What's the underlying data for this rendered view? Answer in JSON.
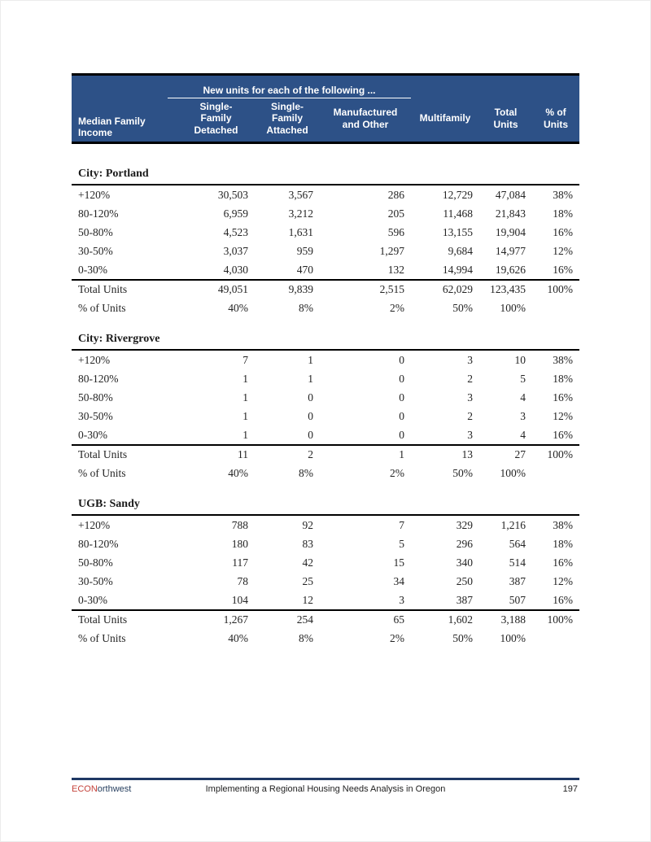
{
  "colors": {
    "header_bg": "#2d5187",
    "header_text": "#ffffff",
    "rule_black": "#000000",
    "footer_rule_navy": "#1f3864",
    "brand_red": "#c4423a",
    "brand_navy": "#263f5f"
  },
  "header": {
    "group_label": "New units for each of the following ...",
    "columns": [
      "Median Family\nIncome",
      "Single-\nFamily\nDetached",
      "Single-\nFamily\nAttached",
      "Manufactured\nand Other",
      "Multifamily",
      "Total\nUnits",
      "% of\nUnits"
    ]
  },
  "sections": [
    {
      "title": "City: Portland",
      "rows": [
        {
          "label": "+120%",
          "values": [
            "30,503",
            "3,567",
            "286",
            "12,729",
            "47,084",
            "38%"
          ]
        },
        {
          "label": "80-120%",
          "values": [
            "6,959",
            "3,212",
            "205",
            "11,468",
            "21,843",
            "18%"
          ]
        },
        {
          "label": "50-80%",
          "values": [
            "4,523",
            "1,631",
            "596",
            "13,155",
            "19,904",
            "16%"
          ]
        },
        {
          "label": "30-50%",
          "values": [
            "3,037",
            "959",
            "1,297",
            "9,684",
            "14,977",
            "12%"
          ]
        },
        {
          "label": "0-30%",
          "values": [
            "4,030",
            "470",
            "132",
            "14,994",
            "19,626",
            "16%"
          ]
        }
      ],
      "total": {
        "label": "Total Units",
        "values": [
          "49,051",
          "9,839",
          "2,515",
          "62,029",
          "123,435",
          "100%"
        ]
      },
      "pct": {
        "label": "% of Units",
        "values": [
          "40%",
          "8%",
          "2%",
          "50%",
          "100%",
          ""
        ]
      }
    },
    {
      "title": "City: Rivergrove",
      "rows": [
        {
          "label": "+120%",
          "values": [
            "7",
            "1",
            "0",
            "3",
            "10",
            "38%"
          ]
        },
        {
          "label": "80-120%",
          "values": [
            "1",
            "1",
            "0",
            "2",
            "5",
            "18%"
          ]
        },
        {
          "label": "50-80%",
          "values": [
            "1",
            "0",
            "0",
            "3",
            "4",
            "16%"
          ]
        },
        {
          "label": "30-50%",
          "values": [
            "1",
            "0",
            "0",
            "2",
            "3",
            "12%"
          ]
        },
        {
          "label": "0-30%",
          "values": [
            "1",
            "0",
            "0",
            "3",
            "4",
            "16%"
          ]
        }
      ],
      "total": {
        "label": "Total Units",
        "values": [
          "11",
          "2",
          "1",
          "13",
          "27",
          "100%"
        ]
      },
      "pct": {
        "label": "% of Units",
        "values": [
          "40%",
          "8%",
          "2%",
          "50%",
          "100%",
          ""
        ]
      }
    },
    {
      "title": "UGB: Sandy",
      "rows": [
        {
          "label": "+120%",
          "values": [
            "788",
            "92",
            "7",
            "329",
            "1,216",
            "38%"
          ]
        },
        {
          "label": "80-120%",
          "values": [
            "180",
            "83",
            "5",
            "296",
            "564",
            "18%"
          ]
        },
        {
          "label": "50-80%",
          "values": [
            "117",
            "42",
            "15",
            "340",
            "514",
            "16%"
          ]
        },
        {
          "label": "30-50%",
          "values": [
            "78",
            "25",
            "34",
            "250",
            "387",
            "12%"
          ]
        },
        {
          "label": "0-30%",
          "values": [
            "104",
            "12",
            "3",
            "387",
            "507",
            "16%"
          ]
        }
      ],
      "total": {
        "label": "Total Units",
        "values": [
          "1,267",
          "254",
          "65",
          "1,602",
          "3,188",
          "100%"
        ]
      },
      "pct": {
        "label": "% of Units",
        "values": [
          "40%",
          "8%",
          "2%",
          "50%",
          "100%",
          ""
        ]
      }
    }
  ],
  "footer": {
    "brand_red_part": "ECON",
    "brand_rest_part": "orthwest",
    "center_text": "Implementing a Regional Housing Needs Analysis in Oregon",
    "page_number": "197"
  }
}
